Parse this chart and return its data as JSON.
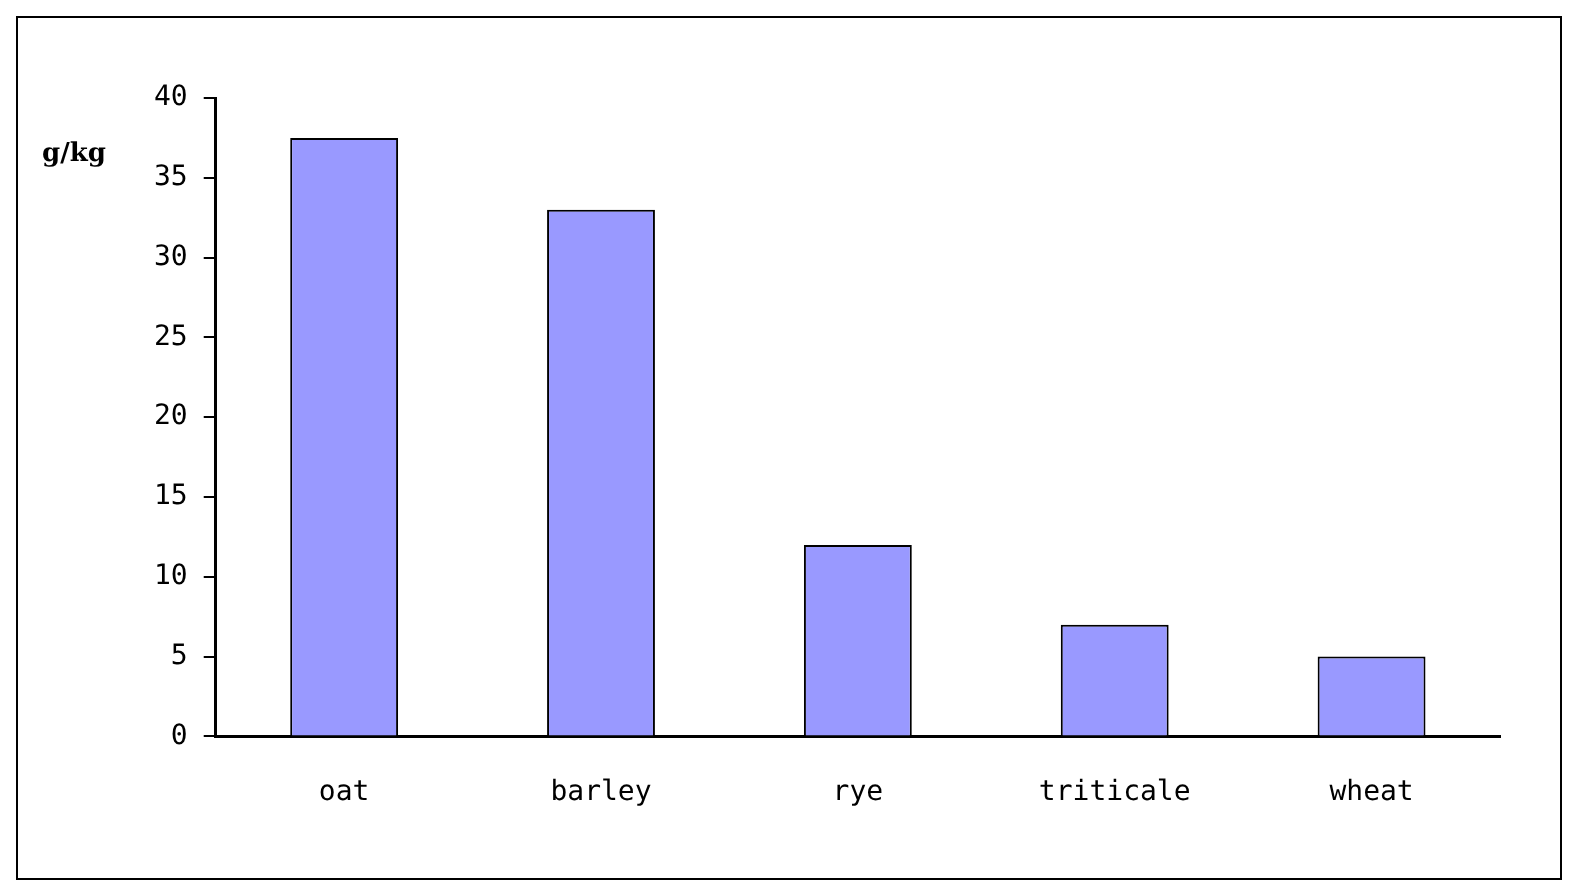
{
  "chart_data": {
    "type": "bar",
    "ylabel": "g/kg",
    "categories": [
      "oat",
      "barley",
      "rye",
      "triticale",
      "wheat"
    ],
    "values": [
      37.5,
      33,
      12,
      7,
      5
    ],
    "color": "#9999ff",
    "ylim": [
      0,
      40
    ],
    "yticks": [
      0,
      5,
      10,
      15,
      20,
      25,
      30,
      35,
      40
    ],
    "grid": false,
    "legend": false
  }
}
